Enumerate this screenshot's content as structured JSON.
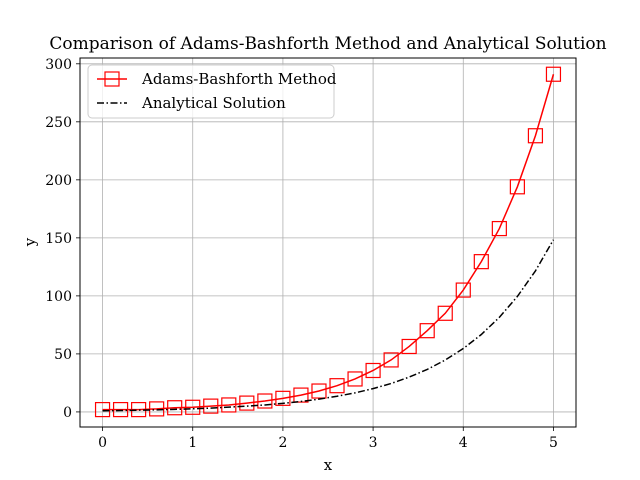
{
  "chart_data": {
    "type": "line",
    "title": "Comparison of Adams-Bashforth Method and Analytical Solution",
    "xlabel": "x",
    "ylabel": "y",
    "xlim": [
      -0.25,
      5.25
    ],
    "ylim": [
      -13,
      305
    ],
    "xticks": [
      0,
      1,
      2,
      3,
      4,
      5
    ],
    "yticks": [
      0,
      50,
      100,
      150,
      200,
      250,
      300
    ],
    "grid": true,
    "legend_position": "top-left",
    "series": [
      {
        "name": "Adams-Bashforth Method",
        "color": "#ff0000",
        "marker": "square-open",
        "line_style": "solid",
        "x": [
          0,
          0.2,
          0.4,
          0.6,
          0.8,
          1.0,
          1.2,
          1.4,
          1.6,
          1.8,
          2.0,
          2.2,
          2.4,
          2.6,
          2.8,
          3.0,
          3.2,
          3.4,
          3.6,
          3.8,
          4.0,
          4.2,
          4.4,
          4.6,
          4.8,
          5.0
        ],
        "y": [
          2.0,
          2.0,
          2.0,
          2.6,
          3.6,
          4.0,
          5.0,
          6.0,
          7.6,
          9.4,
          11.7,
          14.5,
          18.0,
          22.6,
          28.4,
          35.7,
          44.8,
          56.4,
          70.0,
          85.0,
          105.0,
          129.5,
          158.0,
          194.0,
          238.0,
          291.0
        ]
      },
      {
        "name": "Analytical Solution",
        "color": "#000000",
        "marker": "none",
        "line_style": "dashdot",
        "x": [
          0,
          0.2,
          0.4,
          0.6,
          0.8,
          1.0,
          1.2,
          1.4,
          1.6,
          1.8,
          2.0,
          2.2,
          2.4,
          2.6,
          2.8,
          3.0,
          3.2,
          3.4,
          3.6,
          3.8,
          4.0,
          4.2,
          4.4,
          4.6,
          4.8,
          5.0
        ],
        "y": [
          1.0,
          1.2,
          1.5,
          1.8,
          2.2,
          2.7,
          3.3,
          4.1,
          5.0,
          6.0,
          7.4,
          9.0,
          11.0,
          13.5,
          16.4,
          20.1,
          24.5,
          30.0,
          36.6,
          44.7,
          54.6,
          66.7,
          81.5,
          99.5,
          121.5,
          148.4
        ]
      }
    ]
  }
}
